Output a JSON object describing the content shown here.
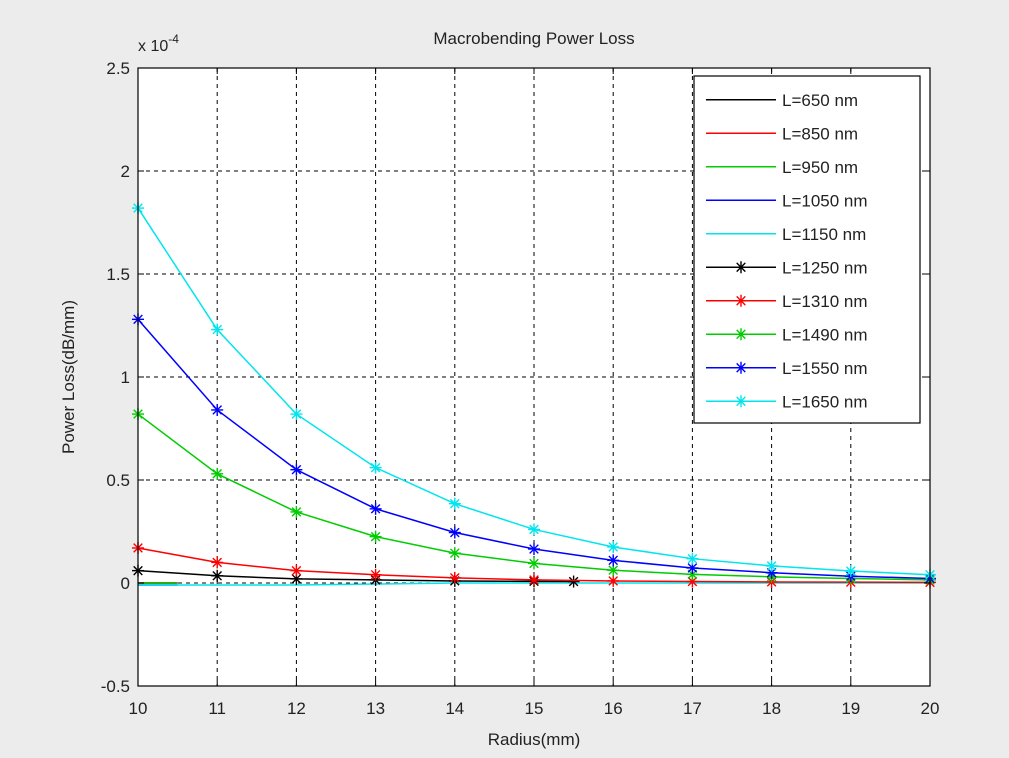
{
  "window": {
    "background": "#ececec",
    "plot_background": "#ffffff"
  },
  "chart_data": {
    "type": "line",
    "title": "Macrobending Power Loss",
    "xlabel": "Radius(mm)",
    "ylabel": "Power Loss(dB/mm)",
    "y_multiplier": "x 10",
    "y_multiplier_exp": "-4",
    "xlim": [
      10,
      20
    ],
    "ylim": [
      -0.5,
      2.5
    ],
    "x_ticks": [
      10,
      11,
      12,
      13,
      14,
      15,
      16,
      17,
      18,
      19,
      20
    ],
    "x_tick_labels": [
      "10",
      "11",
      "12",
      "13",
      "14",
      "15",
      "16",
      "17",
      "18",
      "19",
      "20"
    ],
    "y_ticks": [
      -0.5,
      0,
      0.5,
      1,
      1.5,
      2,
      2.5
    ],
    "y_tick_labels": [
      "-0.5",
      "0",
      "0.5",
      "1",
      "1.5",
      "2",
      "2.5"
    ],
    "grid": true,
    "grid_style": "dashed",
    "legend_position": "top-right",
    "series": [
      {
        "name": "L=650 nm",
        "color": "#000000",
        "marker": "none",
        "x": [
          10,
          10.5
        ],
        "y": [
          0.0,
          0.0
        ]
      },
      {
        "name": "L=850 nm",
        "color": "#ff0000",
        "marker": "none",
        "x": [
          10,
          10.5
        ],
        "y": [
          0.0,
          0.0
        ]
      },
      {
        "name": "L=950 nm",
        "color": "#00cc00",
        "marker": "none",
        "x": [
          10,
          10.5
        ],
        "y": [
          0.0,
          0.0
        ]
      },
      {
        "name": "L=1050 nm",
        "color": "#0000ff",
        "marker": "none",
        "x": [
          10,
          10.5
        ],
        "y": [
          -0.01,
          -0.01
        ]
      },
      {
        "name": "L=1150 nm",
        "color": "#00e5ee",
        "marker": "none",
        "x": [
          10,
          11,
          12,
          13,
          14,
          15,
          16,
          17,
          18,
          19,
          20
        ],
        "y": [
          -0.01,
          -0.01,
          -0.01,
          -0.005,
          0,
          0,
          0,
          0,
          0,
          0,
          0
        ]
      },
      {
        "name": "L=1250 nm",
        "color": "#000000",
        "marker": "star",
        "x": [
          10,
          11,
          12,
          13,
          14,
          15,
          15.5
        ],
        "y": [
          0.06,
          0.035,
          0.02,
          0.015,
          0.01,
          0.008,
          0.007
        ]
      },
      {
        "name": "L=1310 nm",
        "color": "#ff0000",
        "marker": "star",
        "x": [
          10,
          11,
          12,
          13,
          14,
          15,
          16,
          17,
          18,
          19,
          20
        ],
        "y": [
          0.17,
          0.1,
          0.06,
          0.04,
          0.025,
          0.015,
          0.01,
          0.007,
          0.005,
          0.004,
          0.003
        ]
      },
      {
        "name": "L=1490 nm",
        "color": "#00cc00",
        "marker": "star",
        "x": [
          10,
          11,
          12,
          13,
          14,
          15,
          16,
          17,
          18,
          19,
          20
        ],
        "y": [
          0.82,
          0.53,
          0.345,
          0.225,
          0.145,
          0.095,
          0.062,
          0.042,
          0.03,
          0.022,
          0.015
        ]
      },
      {
        "name": "L=1550 nm",
        "color": "#0000ff",
        "marker": "star",
        "x": [
          10,
          11,
          12,
          13,
          14,
          15,
          16,
          17,
          18,
          19,
          20
        ],
        "y": [
          1.28,
          0.84,
          0.55,
          0.36,
          0.245,
          0.165,
          0.11,
          0.073,
          0.05,
          0.033,
          0.022
        ]
      },
      {
        "name": "L=1650 nm",
        "color": "#00e5ee",
        "marker": "star",
        "x": [
          10,
          11,
          12,
          13,
          14,
          15,
          16,
          17,
          18,
          19,
          20
        ],
        "y": [
          1.82,
          1.23,
          0.82,
          0.56,
          0.385,
          0.26,
          0.175,
          0.118,
          0.083,
          0.058,
          0.04
        ]
      }
    ]
  }
}
